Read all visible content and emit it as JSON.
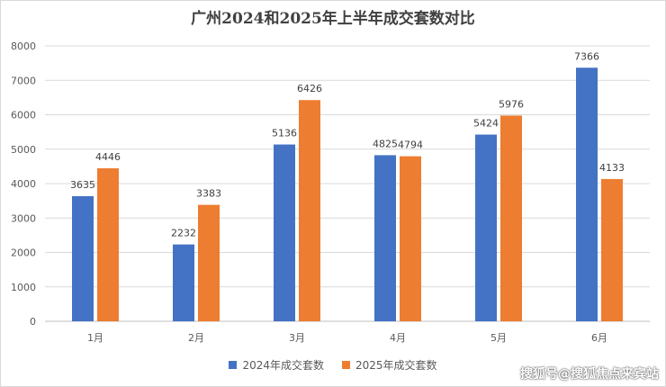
{
  "chart_data": {
    "type": "bar",
    "title": "广州2024和2025年上半年成交套数对比",
    "categories": [
      "1月",
      "2月",
      "3月",
      "4月",
      "5月",
      "6月"
    ],
    "series": [
      {
        "name": "2024年成交套数",
        "values": [
          3635,
          2232,
          5136,
          4825,
          5424,
          7366
        ],
        "color": "#4472C4"
      },
      {
        "name": "2025年成交套数",
        "values": [
          4446,
          3383,
          6426,
          4794,
          5976,
          4133
        ],
        "color": "#ED7D31"
      }
    ],
    "ylim": [
      0,
      8000
    ],
    "yticks": [
      0,
      1000,
      2000,
      3000,
      4000,
      5000,
      6000,
      7000,
      8000
    ],
    "grid": true,
    "legend_position": "bottom",
    "xlabel": "",
    "ylabel": ""
  },
  "watermark": "搜狐号@搜狐焦点来宾站"
}
